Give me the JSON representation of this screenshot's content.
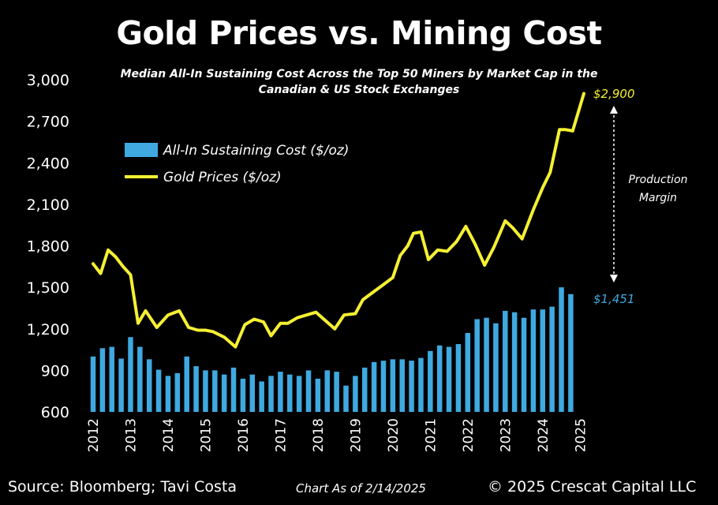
{
  "chart_data": {
    "type": "bar+line",
    "title": "Gold Prices vs. Mining Cost",
    "subtitle": "Median All-In Sustaining Cost Across the Top 50 Miners by Market Cap in the Canadian & US Stock Exchanges",
    "ylim": [
      600,
      3000
    ],
    "yticks": [
      "600",
      "900",
      "1,200",
      "1,500",
      "1,800",
      "2,100",
      "2,400",
      "2,700",
      "3,000"
    ],
    "yticks_values": [
      600,
      900,
      1200,
      1500,
      1800,
      2100,
      2400,
      2700,
      3000
    ],
    "xticks": [
      "2012",
      "2013",
      "2014",
      "2015",
      "2016",
      "2017",
      "2018",
      "2019",
      "2020",
      "2021",
      "2022",
      "2023",
      "2024",
      "2025"
    ],
    "xticks_values": [
      2012,
      2013,
      2014,
      2015,
      2016,
      2017,
      2018,
      2019,
      2020,
      2021,
      2022,
      2023,
      2024,
      2025
    ],
    "legend": [
      {
        "label": "All-In Sustaining Cost ($/oz)",
        "color": "#3fa9e0",
        "kind": "bar"
      },
      {
        "label": "Gold Prices ($/oz)",
        "color": "#f5f032",
        "kind": "line"
      }
    ],
    "series": [
      {
        "name": "All-In Sustaining Cost ($/oz)",
        "type": "bar",
        "color": "#3fa9e0",
        "x": [
          2012.0,
          2012.25,
          2012.5,
          2012.75,
          2013.0,
          2013.25,
          2013.5,
          2013.75,
          2014.0,
          2014.25,
          2014.5,
          2014.75,
          2015.0,
          2015.25,
          2015.5,
          2015.75,
          2016.0,
          2016.25,
          2016.5,
          2016.75,
          2017.0,
          2017.25,
          2017.5,
          2017.75,
          2018.0,
          2018.25,
          2018.5,
          2018.75,
          2019.0,
          2019.25,
          2019.5,
          2019.75,
          2020.0,
          2020.25,
          2020.5,
          2020.75,
          2021.0,
          2021.25,
          2021.5,
          2021.75,
          2022.0,
          2022.25,
          2022.5,
          2022.75,
          2023.0,
          2023.25,
          2023.5,
          2023.75,
          2024.0,
          2024.25,
          2024.5,
          2024.75
        ],
        "values": [
          1000,
          1060,
          1070,
          985,
          1140,
          1070,
          980,
          905,
          860,
          880,
          1000,
          930,
          900,
          900,
          870,
          920,
          840,
          870,
          820,
          860,
          890,
          870,
          860,
          900,
          840,
          900,
          890,
          790,
          860,
          920,
          960,
          970,
          980,
          980,
          970,
          990,
          1040,
          1080,
          1070,
          1090,
          1170,
          1270,
          1280,
          1240,
          1330,
          1320,
          1280,
          1340,
          1340,
          1360,
          1500,
          1451
        ]
      },
      {
        "name": "Gold Prices ($/oz)",
        "type": "line",
        "color": "#f5f032",
        "x": [
          2012.0,
          2012.2,
          2012.4,
          2012.6,
          2012.8,
          2013.0,
          2013.2,
          2013.4,
          2013.7,
          2014.0,
          2014.3,
          2014.55,
          2014.8,
          2015.0,
          2015.2,
          2015.5,
          2015.8,
          2016.05,
          2016.3,
          2016.55,
          2016.75,
          2017.0,
          2017.2,
          2017.45,
          2017.7,
          2017.95,
          2018.2,
          2018.45,
          2018.7,
          2019.0,
          2019.2,
          2019.5,
          2019.75,
          2020.0,
          2020.2,
          2020.4,
          2020.55,
          2020.75,
          2020.95,
          2021.2,
          2021.45,
          2021.7,
          2021.95,
          2022.2,
          2022.45,
          2022.7,
          2023.0,
          2023.2,
          2023.45,
          2023.75,
          2024.0,
          2024.2,
          2024.45,
          2024.6,
          2024.8,
          2025.1
        ],
        "values": [
          1670,
          1600,
          1770,
          1720,
          1650,
          1590,
          1240,
          1330,
          1210,
          1300,
          1330,
          1210,
          1190,
          1190,
          1180,
          1140,
          1070,
          1230,
          1270,
          1250,
          1150,
          1240,
          1240,
          1280,
          1300,
          1320,
          1260,
          1200,
          1300,
          1310,
          1410,
          1470,
          1520,
          1570,
          1730,
          1800,
          1890,
          1900,
          1700,
          1770,
          1760,
          1830,
          1940,
          1810,
          1660,
          1790,
          1980,
          1930,
          1850,
          2060,
          2220,
          2330,
          2640,
          2640,
          2630,
          2900
        ]
      }
    ],
    "annotations": {
      "gold_end_label": "$2,900",
      "cost_end_label": "$1,451",
      "margin_label_line1": "Production",
      "margin_label_line2": "Margin"
    },
    "grid": false,
    "legend_position": "upper-left"
  },
  "footer": {
    "source": "Source: Bloomberg; Tavi Costa",
    "as_of": "Chart As of 2/14/2025",
    "copyright": "© 2025 Crescat Capital LLC"
  }
}
